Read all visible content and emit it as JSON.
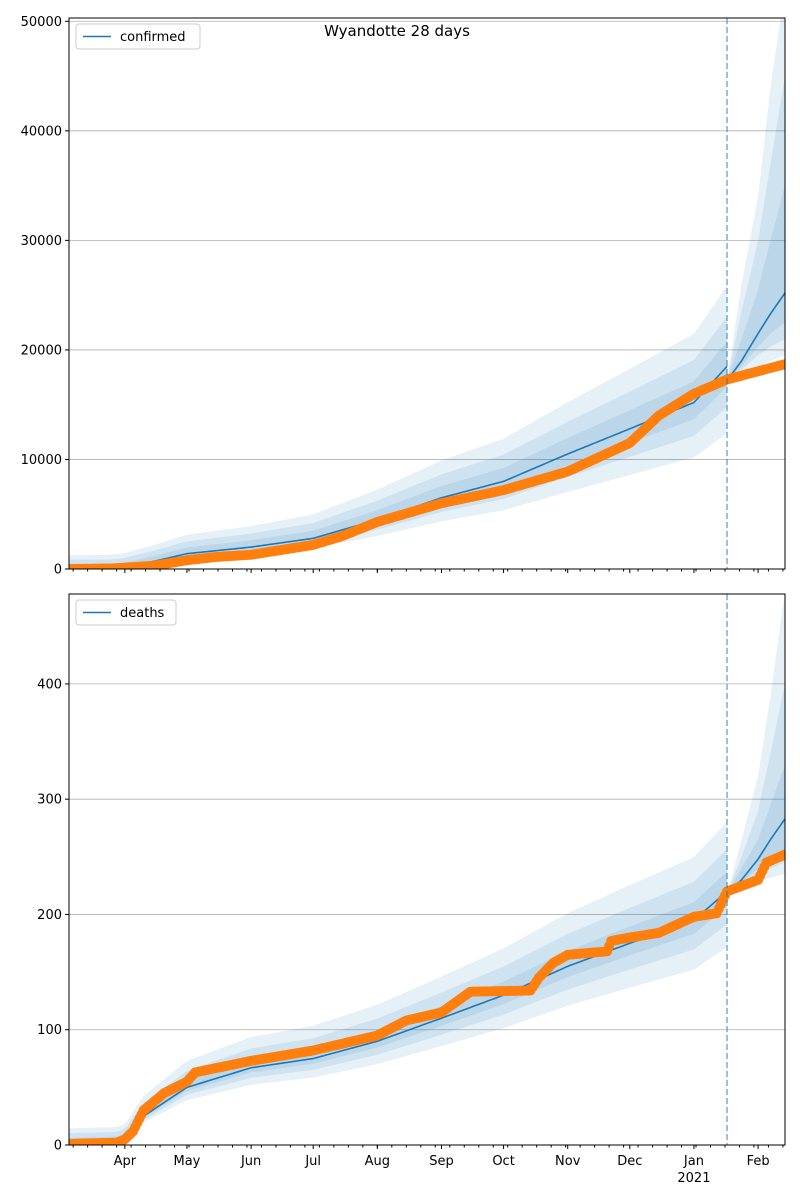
{
  "title": "Wyandotte 28 days",
  "colors": {
    "model": "#1f77b4",
    "observed": "#ff7f0e",
    "band": "#1f77b4",
    "grid": "#b0b0b0"
  },
  "chart_data": [
    {
      "type": "line",
      "title": "Wyandotte 28 days",
      "legend": "confirmed",
      "legend_placement": "top-left",
      "ylim": [
        0,
        50300
      ],
      "yticks": [
        0,
        10000,
        20000,
        30000,
        40000,
        50000
      ],
      "xlim": [
        "2020-03-05",
        "2021-02-14"
      ],
      "forecast_start": "2021-01-17",
      "grid": "y",
      "show_xlabels": false,
      "observed": [
        [
          "2020-03-05",
          0
        ],
        [
          "2020-03-25",
          50
        ],
        [
          "2020-04-01",
          120
        ],
        [
          "2020-04-15",
          300
        ],
        [
          "2020-05-01",
          800
        ],
        [
          "2020-05-15",
          1100
        ],
        [
          "2020-06-01",
          1300
        ],
        [
          "2020-07-01",
          2200
        ],
        [
          "2020-07-15",
          3000
        ],
        [
          "2020-08-01",
          4300
        ],
        [
          "2020-09-01",
          6000
        ],
        [
          "2020-10-01",
          7200
        ],
        [
          "2020-11-01",
          8900
        ],
        [
          "2020-12-01",
          11500
        ],
        [
          "2020-12-15",
          14000
        ],
        [
          "2021-01-01",
          16000
        ],
        [
          "2021-01-17",
          17300
        ],
        [
          "2021-02-14",
          18700
        ]
      ],
      "median_fit": [
        [
          "2020-03-05",
          0
        ],
        [
          "2020-03-25",
          20
        ],
        [
          "2020-04-01",
          150
        ],
        [
          "2020-04-15",
          700
        ],
        [
          "2020-05-01",
          1400
        ],
        [
          "2020-06-01",
          2000
        ],
        [
          "2020-07-01",
          2800
        ],
        [
          "2020-08-01",
          4500
        ],
        [
          "2020-09-01",
          6500
        ],
        [
          "2020-10-01",
          8000
        ],
        [
          "2020-11-01",
          10500
        ],
        [
          "2020-12-01",
          12800
        ],
        [
          "2021-01-01",
          15200
        ],
        [
          "2021-01-17",
          18500
        ]
      ],
      "fit_band_relative": [
        0.33,
        0.2,
        0.1
      ],
      "median_forecast": [
        [
          "2021-01-17",
          17200
        ],
        [
          "2021-01-24",
          19000
        ],
        [
          "2021-02-01",
          21500
        ],
        [
          "2021-02-07",
          23300
        ],
        [
          "2021-02-14",
          25200
        ]
      ],
      "forecast_bands": [
        {
          "lower": [
            17200,
            17800,
            18500,
            19000,
            19500
          ],
          "upper": [
            17200,
            26000,
            34000,
            44000,
            53000
          ]
        },
        {
          "lower": [
            17200,
            18200,
            19500,
            20300,
            21000
          ],
          "upper": [
            17200,
            23500,
            30000,
            37000,
            45000
          ]
        },
        {
          "lower": [
            17200,
            18500,
            20300,
            21500,
            22500
          ],
          "upper": [
            17200,
            21000,
            25500,
            30000,
            35000
          ]
        }
      ]
    },
    {
      "type": "line",
      "legend": "deaths",
      "legend_placement": "top-left",
      "ylim": [
        0,
        478
      ],
      "yticks": [
        0,
        100,
        200,
        300,
        400
      ],
      "xlim": [
        "2020-03-05",
        "2021-02-14"
      ],
      "forecast_start": "2021-01-17",
      "grid": "y",
      "show_xlabels": true,
      "observed": [
        [
          "2020-03-05",
          1
        ],
        [
          "2020-03-28",
          2
        ],
        [
          "2020-04-01",
          5
        ],
        [
          "2020-04-05",
          12
        ],
        [
          "2020-04-10",
          30
        ],
        [
          "2020-04-20",
          45
        ],
        [
          "2020-05-01",
          55
        ],
        [
          "2020-05-05",
          63
        ],
        [
          "2020-06-01",
          73
        ],
        [
          "2020-07-01",
          82
        ],
        [
          "2020-08-01",
          95
        ],
        [
          "2020-08-15",
          108
        ],
        [
          "2020-09-01",
          115
        ],
        [
          "2020-09-15",
          133
        ],
        [
          "2020-10-14",
          134
        ],
        [
          "2020-10-18",
          145
        ],
        [
          "2020-10-25",
          158
        ],
        [
          "2020-11-01",
          165
        ],
        [
          "2020-11-20",
          168
        ],
        [
          "2020-11-22",
          177
        ],
        [
          "2020-12-01",
          180
        ],
        [
          "2020-12-15",
          184
        ],
        [
          "2021-01-01",
          198
        ],
        [
          "2021-01-12",
          201
        ],
        [
          "2021-01-15",
          213
        ],
        [
          "2021-01-17",
          220
        ],
        [
          "2021-02-01",
          230
        ],
        [
          "2021-02-05",
          245
        ],
        [
          "2021-02-14",
          252
        ]
      ],
      "median_fit": [
        [
          "2020-03-05",
          2
        ],
        [
          "2020-03-28",
          3
        ],
        [
          "2020-04-01",
          5
        ],
        [
          "2020-04-10",
          25
        ],
        [
          "2020-05-01",
          50
        ],
        [
          "2020-06-01",
          67
        ],
        [
          "2020-07-01",
          75
        ],
        [
          "2020-08-01",
          90
        ],
        [
          "2020-09-01",
          110
        ],
        [
          "2020-10-01",
          130
        ],
        [
          "2020-11-01",
          155
        ],
        [
          "2020-12-01",
          175
        ],
        [
          "2021-01-01",
          195
        ],
        [
          "2021-01-17",
          220
        ]
      ],
      "fit_band_relative": [
        0.22,
        0.13,
        0.06
      ],
      "median_forecast": [
        [
          "2021-01-17",
          218
        ],
        [
          "2021-01-24",
          230
        ],
        [
          "2021-02-01",
          248
        ],
        [
          "2021-02-07",
          265
        ],
        [
          "2021-02-14",
          283
        ]
      ],
      "forecast_bands": [
        {
          "lower": [
            218,
            222,
            228,
            232,
            235
          ],
          "upper": [
            218,
            265,
            320,
            390,
            480
          ]
        },
        {
          "lower": [
            218,
            225,
            234,
            240,
            245
          ],
          "upper": [
            218,
            250,
            290,
            340,
            400
          ]
        },
        {
          "lower": [
            218,
            228,
            240,
            248,
            255
          ],
          "upper": [
            218,
            240,
            265,
            295,
            330
          ]
        }
      ]
    }
  ],
  "x_tick_labels": [
    {
      "date": "2020-04-01",
      "label": "Apr"
    },
    {
      "date": "2020-05-01",
      "label": "May"
    },
    {
      "date": "2020-06-01",
      "label": "Jun"
    },
    {
      "date": "2020-07-01",
      "label": "Jul"
    },
    {
      "date": "2020-08-01",
      "label": "Aug"
    },
    {
      "date": "2020-09-01",
      "label": "Sep"
    },
    {
      "date": "2020-10-01",
      "label": "Oct"
    },
    {
      "date": "2020-11-01",
      "label": "Nov"
    },
    {
      "date": "2020-12-01",
      "label": "Dec"
    },
    {
      "date": "2021-01-01",
      "label": "Jan"
    },
    {
      "date": "2021-02-01",
      "label": "Feb"
    }
  ],
  "x_year_label": "2021"
}
